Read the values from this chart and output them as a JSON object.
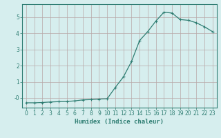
{
  "x": [
    0,
    1,
    2,
    3,
    4,
    5,
    6,
    7,
    8,
    9,
    10,
    11,
    12,
    13,
    14,
    15,
    16,
    17,
    18,
    19,
    20,
    21,
    22,
    23
  ],
  "y": [
    -0.3,
    -0.3,
    -0.28,
    -0.25,
    -0.23,
    -0.22,
    -0.18,
    -0.12,
    -0.1,
    -0.07,
    -0.05,
    0.65,
    1.3,
    2.25,
    3.55,
    4.1,
    4.75,
    5.3,
    5.25,
    4.85,
    4.8,
    4.65,
    4.4,
    4.1
  ],
  "line_color": "#2e7d72",
  "marker": "+",
  "marker_size": 3,
  "marker_edge_width": 0.8,
  "line_width": 0.9,
  "xlabel": "Humidex (Indice chaleur)",
  "xlim": [
    -0.5,
    23.5
  ],
  "ylim": [
    -0.6,
    5.8
  ],
  "yticks": [
    0,
    1,
    2,
    3,
    4,
    5
  ],
  "ytick_labels": [
    "-0",
    "1",
    "2",
    "3",
    "4",
    "5"
  ],
  "xticks": [
    0,
    1,
    2,
    3,
    4,
    5,
    6,
    7,
    8,
    9,
    10,
    11,
    12,
    13,
    14,
    15,
    16,
    17,
    18,
    19,
    20,
    21,
    22,
    23
  ],
  "bg_color": "#d6eeee",
  "grid_color": "#b8a8a8",
  "axis_color": "#2e7d72",
  "tick_color": "#2e7d72",
  "label_color": "#2e7d72",
  "xlabel_fontsize": 6.5,
  "tick_fontsize": 5.5
}
